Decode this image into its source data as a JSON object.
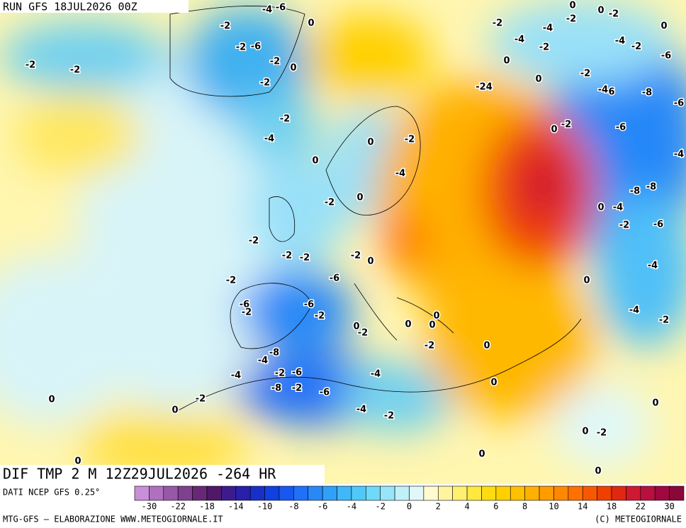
{
  "header": {
    "run": "RUN GFS 18JUL2026 00Z"
  },
  "map_title": "DIF TMP 2 M 12Z29JUL2026 -264 HR",
  "map_labels": [
    "-4",
    "-6",
    "-2",
    "0",
    "-2",
    "-6",
    "-2",
    "0",
    "-2",
    "-2",
    "-2",
    "-2",
    "-4",
    "0",
    "0",
    "-2",
    "-4",
    "0",
    "-2",
    "-2",
    "-2",
    "-2",
    "-2",
    "0",
    "-2",
    "-6",
    "-6",
    "-2",
    "-6",
    "-2",
    "0",
    "-2",
    "0",
    "0",
    "0",
    "0",
    "-2",
    "-8",
    "-4",
    "-4",
    "-2",
    "-6",
    "-4",
    "-8",
    "-2",
    "-6",
    "0",
    "-4",
    "-2",
    "0",
    "-2",
    "0",
    "0",
    "0",
    "-2",
    "0",
    "0",
    "0",
    "-2",
    "0",
    "0",
    "0",
    "-2",
    "-4",
    "-4",
    "-2",
    "-2",
    "-4",
    "-2",
    "-6",
    "0",
    "0",
    "-2",
    "-24",
    "-4",
    "6",
    "-8",
    "-6",
    "0",
    "-2",
    "-6",
    "-4",
    "-8",
    "-8",
    "0",
    "-4",
    "-2",
    "-6",
    "-4",
    "0",
    "-4",
    "-2"
  ],
  "footer": {
    "source": "DATI NCEP GFS 0.25°",
    "credit": "MTG-GFS – ELABORAZIONE WWW.METEOGIORNALE.IT",
    "copyright": "(C) METEOGIORNALE"
  },
  "colorbar": {
    "colors": [
      "#c890d8",
      "#b070c0",
      "#9858a8",
      "#804090",
      "#682878",
      "#501868",
      "#3c1c8c",
      "#2820a8",
      "#1830c8",
      "#1040e0",
      "#1858f0",
      "#2070f8",
      "#2888f8",
      "#30a0f8",
      "#40b8f8",
      "#50c8f8",
      "#70d8f8",
      "#98e4f8",
      "#c0f0f8",
      "#e0f8f8",
      "#fffad0",
      "#fff4a0",
      "#fff070",
      "#ffe840",
      "#ffdc10",
      "#ffd000",
      "#ffc000",
      "#ffb000",
      "#ff9c00",
      "#ff8800",
      "#ff7000",
      "#f85800",
      "#f04000",
      "#e02810",
      "#d01830",
      "#b81040",
      "#a00840",
      "#880838"
    ],
    "ticks": [
      -30,
      -22,
      -18,
      -14,
      -10,
      -8,
      -6,
      -4,
      -2,
      0,
      2,
      4,
      6,
      8,
      10,
      14,
      18,
      22,
      30
    ]
  }
}
